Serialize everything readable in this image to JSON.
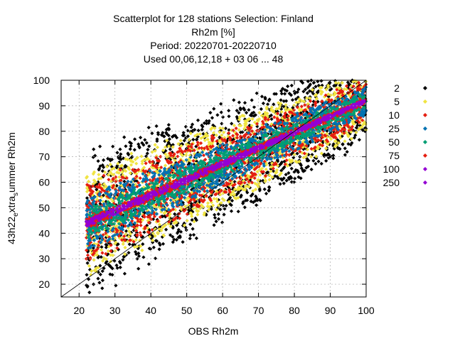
{
  "chart_data": {
    "type": "scatter",
    "title_lines": [
      "Scatterplot for  128 stations Selection: Finland",
      "Rh2m [%]",
      "Period: 20220701-20220710",
      "Used  00,06,12,18  + 03 06 ... 48"
    ],
    "xlabel": "OBS Rh2m",
    "ylabel_main": "43h22",
    "ylabel_sub1": "e",
    "ylabel_mid": "xtra",
    "ylabel_sub2": "s",
    "ylabel_end": "ummer Rh2m",
    "xlim": [
      15,
      100
    ],
    "ylim": [
      15,
      100
    ],
    "xticks": [
      20,
      30,
      40,
      50,
      60,
      70,
      80,
      90,
      100
    ],
    "yticks": [
      20,
      30,
      40,
      50,
      60,
      70,
      80,
      90,
      100
    ],
    "grid": true,
    "legend_position": "right",
    "diagonal": true,
    "legend": [
      {
        "label": "2",
        "color": "#000000"
      },
      {
        "label": "5",
        "color": "#f0e442"
      },
      {
        "label": "10",
        "color": "#e51e10"
      },
      {
        "label": "25",
        "color": "#0072b2"
      },
      {
        "label": "50",
        "color": "#009e73"
      },
      {
        "label": "75",
        "color": "#e51e10"
      },
      {
        "label": "100",
        "color": "#9400d3"
      },
      {
        "label": "250",
        "color": "#9400d3"
      }
    ],
    "bands": [
      {
        "count_class": "2",
        "color": "#000000",
        "halfwidth": 22
      },
      {
        "count_class": "5",
        "color": "#f0e442",
        "halfwidth": 16
      },
      {
        "count_class": "10",
        "color": "#e51e10",
        "halfwidth": 12
      },
      {
        "count_class": "25",
        "color": "#0072b2",
        "halfwidth": 8
      },
      {
        "count_class": "50",
        "color": "#009e73",
        "halfwidth": 4.5
      },
      {
        "count_class": "75",
        "color": "#e51e10",
        "halfwidth": 1.5
      },
      {
        "count_class": "100",
        "color": "#9400d3",
        "halfwidth": 1
      }
    ]
  }
}
